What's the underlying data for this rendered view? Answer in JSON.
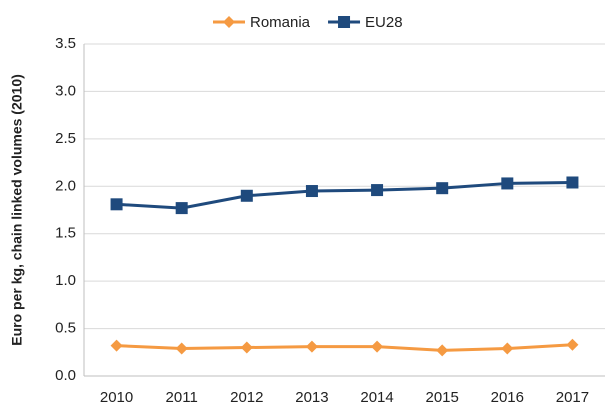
{
  "chart_data": {
    "type": "line",
    "y_label": "Euro per kg, chain linked volumes (2010)",
    "categories": [
      "2010",
      "2011",
      "2012",
      "2013",
      "2014",
      "2015",
      "2016",
      "2017"
    ],
    "series": [
      {
        "name": "Romania",
        "color": "#f59a42",
        "marker": "diamond",
        "values": [
          0.32,
          0.29,
          0.3,
          0.31,
          0.31,
          0.27,
          0.29,
          0.33
        ]
      },
      {
        "name": "EU28",
        "color": "#1f4a7d",
        "marker": "square",
        "values": [
          1.81,
          1.77,
          1.9,
          1.95,
          1.96,
          1.98,
          2.03,
          2.04
        ]
      }
    ],
    "ylim": [
      0,
      3.5
    ],
    "yticks": [
      {
        "value": 0,
        "label": "0.0"
      },
      0.5,
      {
        "value": 1,
        "label": "1.0"
      },
      1.5,
      {
        "value": 2,
        "label": "2.0"
      },
      2.5,
      {
        "value": 3,
        "label": "3.0"
      },
      3.5
    ],
    "grid": true,
    "legend": "top"
  }
}
